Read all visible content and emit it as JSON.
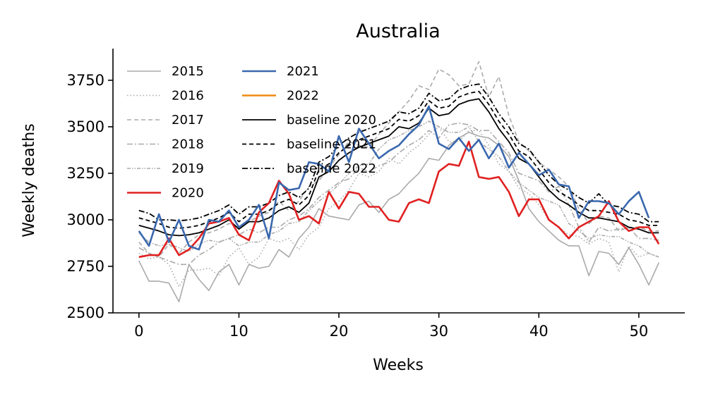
{
  "chart_data": {
    "type": "line",
    "title": "Australia",
    "xlabel": "Weeks",
    "ylabel": "Weekly deaths",
    "xlim": [
      -2.6,
      54.6
    ],
    "ylim": [
      2500,
      3920
    ],
    "xticks": [
      0,
      10,
      20,
      30,
      40,
      50
    ],
    "yticks": [
      2500,
      2750,
      3000,
      3250,
      3500,
      3750
    ],
    "grid": false,
    "legend": "upper-left, two columns",
    "series": [
      {
        "name": "2015",
        "color": "#aaaaaa",
        "dash": "",
        "width": 1.6,
        "values": [
          2780,
          2670,
          2670,
          2660,
          2560,
          2760,
          2680,
          2620,
          2720,
          2760,
          2650,
          2760,
          2740,
          2750,
          2840,
          2800,
          2900,
          2960,
          3060,
          3020,
          3010,
          3000,
          3080,
          3100,
          3040,
          3110,
          3140,
          3200,
          3250,
          3330,
          3320,
          3400,
          3440,
          3470,
          3450,
          3440,
          3400,
          3340,
          3210,
          3060,
          2990,
          2940,
          2890,
          2860,
          2860,
          2700,
          2830,
          2820,
          2760,
          2850,
          2760,
          2650,
          2770
        ]
      },
      {
        "name": "2016",
        "color": "#aaaaaa",
        "dash": "1.5,3",
        "width": 1.6,
        "values": [
          2820,
          2790,
          2800,
          2760,
          2640,
          2730,
          2730,
          2740,
          2700,
          2800,
          2850,
          2760,
          2800,
          2900,
          2880,
          2900,
          2840,
          2920,
          2960,
          3060,
          3100,
          3160,
          3250,
          3230,
          3260,
          3330,
          3300,
          3360,
          3400,
          3460,
          3500,
          3420,
          3420,
          3480,
          3480,
          3400,
          3300,
          3260,
          3170,
          3140,
          3080,
          3000,
          2960,
          2920,
          2910,
          2870,
          2900,
          2880,
          2720,
          2860,
          2800,
          2820,
          2800
        ]
      },
      {
        "name": "2017",
        "color": "#aaaaaa",
        "dash": "6,4",
        "width": 1.6,
        "values": [
          2880,
          2820,
          2800,
          2870,
          2820,
          2880,
          2920,
          2930,
          2950,
          2980,
          2960,
          2990,
          3020,
          3040,
          3100,
          3050,
          3100,
          3180,
          3210,
          3280,
          3350,
          3420,
          3400,
          3390,
          3460,
          3520,
          3580,
          3640,
          3720,
          3700,
          3810,
          3780,
          3720,
          3730,
          3850,
          3660,
          3770,
          3560,
          3420,
          3370,
          3310,
          3270,
          3230,
          3180,
          3060,
          2980,
          3020,
          3010,
          2940,
          2960,
          2960,
          2940,
          2940
        ]
      },
      {
        "name": "2018",
        "color": "#aaaaaa",
        "dash": "8,3,2,3",
        "width": 1.6,
        "values": [
          2850,
          2820,
          2800,
          2780,
          2760,
          2760,
          2810,
          2840,
          2880,
          2900,
          2920,
          2950,
          2930,
          2960,
          2960,
          3000,
          3020,
          3060,
          3120,
          3160,
          3200,
          3220,
          3280,
          3260,
          3290,
          3310,
          3360,
          3400,
          3430,
          3480,
          3440,
          3510,
          3520,
          3510,
          3480,
          3480,
          3420,
          3360,
          3250,
          3230,
          3210,
          3150,
          3180,
          3080,
          2960,
          2880,
          2960,
          2940,
          2950,
          2960,
          2900,
          2900,
          2890
        ]
      },
      {
        "name": "2019",
        "color": "#aaaaaa",
        "dash": "5,2,1.5,2,1.5,2",
        "width": 1.6,
        "values": [
          2930,
          2880,
          2860,
          2870,
          2850,
          2830,
          2870,
          2890,
          2880,
          2900,
          2860,
          2880,
          2880,
          2920,
          2940,
          2980,
          2990,
          3050,
          3100,
          3140,
          3190,
          3250,
          3290,
          3300,
          3380,
          3430,
          3450,
          3480,
          3500,
          3530,
          3500,
          3470,
          3470,
          3500,
          3420,
          3380,
          3340,
          3260,
          3200,
          3160,
          3120,
          3100,
          3080,
          2980,
          2940,
          2900,
          2920,
          2910,
          2910,
          2880,
          2860,
          2820,
          2800
        ]
      },
      {
        "name": "2020",
        "color": "#e02020",
        "dash": "",
        "width": 2.6,
        "values": [
          2800,
          2810,
          2810,
          2900,
          2810,
          2840,
          2900,
          2980,
          2990,
          3010,
          2920,
          2890,
          3040,
          3090,
          3210,
          3140,
          3000,
          3020,
          2980,
          3150,
          3060,
          3150,
          3140,
          3070,
          3070,
          3000,
          2990,
          3090,
          3110,
          3090,
          3260,
          3300,
          3290,
          3420,
          3230,
          3220,
          3230,
          3150,
          3020,
          3110,
          3110,
          3000,
          2960,
          2900,
          2960,
          2990,
          3020,
          3100,
          2990,
          2940,
          2960,
          2960,
          2870
        ]
      },
      {
        "name": "2021",
        "color": "#3a68ae",
        "dash": "",
        "width": 2.6,
        "values": [
          2940,
          2860,
          3030,
          2880,
          3000,
          2860,
          2840,
          3000,
          2990,
          3050,
          2960,
          3000,
          3080,
          2900,
          3200,
          3160,
          3170,
          3310,
          3300,
          3260,
          3450,
          3310,
          3490,
          3410,
          3330,
          3370,
          3400,
          3460,
          3510,
          3610,
          3410,
          3380,
          3440,
          3370,
          3430,
          3330,
          3410,
          3280,
          3360,
          3300,
          3240,
          3270,
          3190,
          3180,
          3010,
          3100,
          3100,
          3090,
          3030,
          3100,
          3150,
          3010
        ]
      },
      {
        "name": "2022",
        "color": "#f08a10",
        "dash": "",
        "width": 2.6,
        "values": []
      },
      {
        "name": "baseline 2020",
        "color": "#000000",
        "dash": "",
        "width": 1.8,
        "values": [
          2970,
          2955,
          2940,
          2920,
          2915,
          2920,
          2930,
          2950,
          2970,
          3000,
          2950,
          2990,
          2990,
          3010,
          3050,
          3070,
          3040,
          3090,
          3230,
          3260,
          3320,
          3360,
          3390,
          3410,
          3430,
          3450,
          3500,
          3490,
          3520,
          3600,
          3560,
          3570,
          3620,
          3640,
          3650,
          3580,
          3490,
          3420,
          3330,
          3300,
          3230,
          3160,
          3110,
          3080,
          3040,
          3010,
          3010,
          3000,
          2990,
          2960,
          2950,
          2930,
          2930
        ]
      },
      {
        "name": "baseline 2021",
        "color": "#000000",
        "dash": "6,4",
        "width": 1.8,
        "values": [
          3010,
          2995,
          2980,
          2960,
          2955,
          2960,
          2970,
          2990,
          3010,
          3040,
          2990,
          3030,
          3030,
          3050,
          3090,
          3110,
          3080,
          3130,
          3270,
          3300,
          3360,
          3400,
          3430,
          3450,
          3470,
          3490,
          3540,
          3530,
          3560,
          3640,
          3600,
          3610,
          3660,
          3680,
          3690,
          3620,
          3530,
          3460,
          3370,
          3340,
          3270,
          3200,
          3150,
          3120,
          3080,
          3050,
          3050,
          3040,
          3030,
          3000,
          2990,
          2970,
          2970
        ]
      },
      {
        "name": "baseline 2022",
        "color": "#000000",
        "dash": "8,3,2,3",
        "width": 1.8,
        "values": [
          3050,
          3035,
          3000,
          3000,
          2995,
          3000,
          3010,
          3030,
          3050,
          3080,
          3030,
          3070,
          3070,
          3090,
          3130,
          3150,
          3120,
          3170,
          3310,
          3340,
          3400,
          3440,
          3470,
          3490,
          3510,
          3530,
          3580,
          3570,
          3600,
          3680,
          3640,
          3650,
          3700,
          3720,
          3730,
          3660,
          3570,
          3500,
          3410,
          3380,
          3310,
          3240,
          3190,
          3160,
          3120,
          3090,
          3140,
          3080,
          3070,
          3040,
          3030,
          2990,
          2990
        ]
      }
    ]
  }
}
